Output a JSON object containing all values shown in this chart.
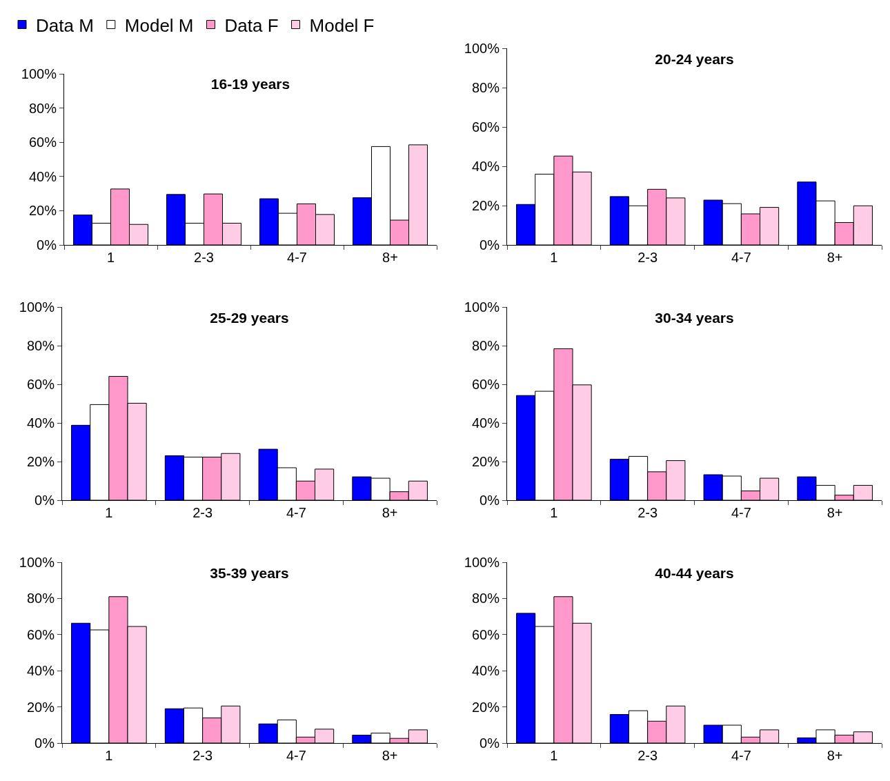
{
  "chart_data": [
    {
      "type": "bar",
      "title": "16-19 years",
      "categories": [
        "1",
        "2-3",
        "4-7",
        "8+"
      ],
      "legend": "top left",
      "ylim": [
        0,
        100
      ],
      "yticks": [
        {
          "value": 0,
          "label": "0%"
        },
        {
          "value": 20,
          "label": "20%"
        },
        {
          "value": 40,
          "label": "40%"
        },
        {
          "value": 60,
          "label": "60%"
        },
        {
          "value": 80,
          "label": "80%"
        },
        {
          "value": 100,
          "label": "100%"
        }
      ],
      "grid": false,
      "series": [
        {
          "name": "Data M",
          "color": "#0000ff",
          "values": [
            17.5,
            29.5,
            27,
            27.6
          ]
        },
        {
          "name": "Model M",
          "color": "#ffffff",
          "values": [
            12.7,
            12.7,
            18.5,
            57.5
          ]
        },
        {
          "name": "Data F",
          "color": "#ff99cc",
          "values": [
            32.7,
            29.8,
            24,
            14.5
          ]
        },
        {
          "name": "Model F",
          "color": "#ffcce6",
          "values": [
            12,
            12.7,
            17.8,
            58.5
          ]
        }
      ]
    },
    {
      "type": "bar",
      "title": "20-24 years",
      "categories": [
        "1",
        "2-3",
        "4-7",
        "8+"
      ],
      "ylim": [
        0,
        100
      ],
      "yticks": [
        {
          "value": 0,
          "label": "0%"
        },
        {
          "value": 20,
          "label": "20%"
        },
        {
          "value": 40,
          "label": "40%"
        },
        {
          "value": 60,
          "label": "60%"
        },
        {
          "value": 80,
          "label": "80%"
        },
        {
          "value": 100,
          "label": "100%"
        }
      ],
      "grid": false,
      "series": [
        {
          "color": "#0000ff",
          "values": [
            20.6,
            24.6,
            22.8,
            32
          ]
        },
        {
          "color": "#ffffff",
          "values": [
            36,
            19.9,
            21,
            22.4
          ]
        },
        {
          "color": "#ff99cc",
          "values": [
            45.2,
            28.3,
            15.8,
            11.4
          ]
        },
        {
          "color": "#ffcce6",
          "values": [
            37.1,
            23.9,
            19.1,
            19.9
          ]
        }
      ]
    },
    {
      "type": "bar",
      "title": "25-29 years",
      "categories": [
        "1",
        "2-3",
        "4-7",
        "8+"
      ],
      "ylim": [
        0,
        100
      ],
      "yticks": [
        {
          "value": 0,
          "label": "0%"
        },
        {
          "value": 20,
          "label": "20%"
        },
        {
          "value": 40,
          "label": "40%"
        },
        {
          "value": 60,
          "label": "60%"
        },
        {
          "value": 80,
          "label": "80%"
        },
        {
          "value": 100,
          "label": "100%"
        }
      ],
      "grid": false,
      "series": [
        {
          "color": "#0000ff",
          "values": [
            38.8,
            23,
            26.4,
            12.1
          ]
        },
        {
          "color": "#ffffff",
          "values": [
            49.5,
            22.3,
            16.8,
            11.4
          ]
        },
        {
          "color": "#ff99cc",
          "values": [
            64.1,
            22.3,
            9.9,
            4.4
          ]
        },
        {
          "color": "#ffcce6",
          "values": [
            50.2,
            24.2,
            16.1,
            9.9
          ]
        }
      ]
    },
    {
      "type": "bar",
      "title": "30-34 years",
      "categories": [
        "1",
        "2-3",
        "4-7",
        "8+"
      ],
      "ylim": [
        0,
        100
      ],
      "yticks": [
        {
          "value": 0,
          "label": "0%"
        },
        {
          "value": 20,
          "label": "20%"
        },
        {
          "value": 40,
          "label": "40%"
        },
        {
          "value": 60,
          "label": "60%"
        },
        {
          "value": 80,
          "label": "80%"
        },
        {
          "value": 100,
          "label": "100%"
        }
      ],
      "grid": false,
      "series": [
        {
          "color": "#0000ff",
          "values": [
            54.2,
            21.2,
            13.2,
            12.1
          ]
        },
        {
          "color": "#ffffff",
          "values": [
            56.4,
            22.7,
            12.5,
            7.7
          ]
        },
        {
          "color": "#ff99cc",
          "values": [
            78.4,
            14.7,
            4.8,
            2.6
          ]
        },
        {
          "color": "#ffcce6",
          "values": [
            59.7,
            20.5,
            11.4,
            7.7
          ]
        }
      ]
    },
    {
      "type": "bar",
      "title": "35-39 years",
      "categories": [
        "1",
        "2-3",
        "4-7",
        "8+"
      ],
      "ylim": [
        0,
        100
      ],
      "yticks": [
        {
          "value": 0,
          "label": "0%"
        },
        {
          "value": 20,
          "label": "20%"
        },
        {
          "value": 40,
          "label": "40%"
        },
        {
          "value": 60,
          "label": "60%"
        },
        {
          "value": 80,
          "label": "80%"
        },
        {
          "value": 100,
          "label": "100%"
        }
      ],
      "grid": false,
      "series": [
        {
          "color": "#0000ff",
          "values": [
            66.3,
            19,
            10.6,
            4.4
          ]
        },
        {
          "color": "#ffffff",
          "values": [
            62.6,
            19.4,
            12.8,
            5.5
          ]
        },
        {
          "color": "#ff99cc",
          "values": [
            81,
            13.9,
            3.3,
            2.6
          ]
        },
        {
          "color": "#ffcce6",
          "values": [
            64.5,
            20.5,
            7.7,
            7.3
          ]
        }
      ]
    },
    {
      "type": "bar",
      "title": "40-44 years",
      "categories": [
        "1",
        "2-3",
        "4-7",
        "8+"
      ],
      "ylim": [
        0,
        100
      ],
      "yticks": [
        {
          "value": 0,
          "label": "0%"
        },
        {
          "value": 20,
          "label": "20%"
        },
        {
          "value": 40,
          "label": "40%"
        },
        {
          "value": 60,
          "label": "60%"
        },
        {
          "value": 80,
          "label": "80%"
        },
        {
          "value": 100,
          "label": "100%"
        }
      ],
      "grid": false,
      "series": [
        {
          "color": "#0000ff",
          "values": [
            71.8,
            15.8,
            9.9,
            2.9
          ]
        },
        {
          "color": "#ffffff",
          "values": [
            64.5,
            17.9,
            9.9,
            7.3
          ]
        },
        {
          "color": "#ff99cc",
          "values": [
            81,
            12.1,
            3.3,
            4.4
          ]
        },
        {
          "color": "#ffcce6",
          "values": [
            66.3,
            20.5,
            7.3,
            6.2
          ]
        }
      ]
    }
  ]
}
